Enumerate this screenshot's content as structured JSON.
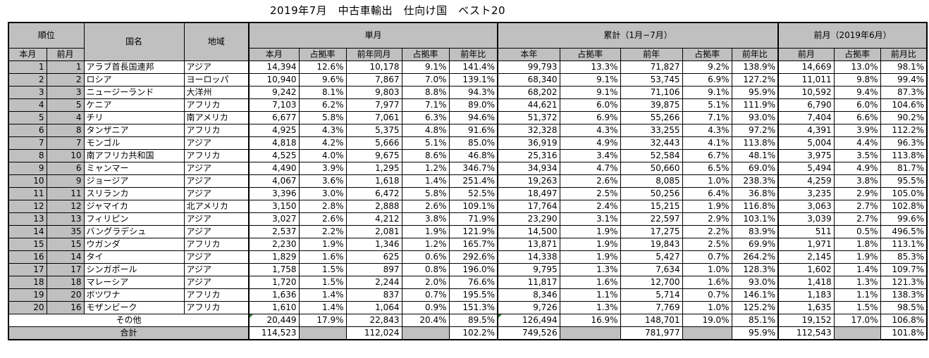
{
  "title": "2019年7月　中古車輸出　仕向け国　ベスト20",
  "headers": {
    "rank": "順位",
    "country": "国名",
    "region": "地域",
    "monthly": "単月",
    "cumulative": "累計（1月−7月）",
    "prev_month": "前月（2019年6月）",
    "this_month": "本月",
    "last_month": "前月",
    "share": "占拠率",
    "prev_year_same_month": "前年同月",
    "yoy": "前年比",
    "this_year": "本年",
    "prev_year": "前年",
    "mom": "前月比"
  },
  "rows": [
    {
      "r": "1",
      "p": "1",
      "country": "アラブ首長国連邦",
      "region": "アジア",
      "m": "14,394",
      "ms": "12.6%",
      "py": "10,178",
      "pys": "9.1%",
      "yoy": "141.4%",
      "cy": "99,793",
      "cys": "13.3%",
      "cp": "71,827",
      "cps": "9.2%",
      "cyoy": "138.9%",
      "pm": "14,669",
      "pms": "13.0%",
      "mom": "98.1%"
    },
    {
      "r": "2",
      "p": "2",
      "country": "ロシア",
      "region": "ヨーロッパ",
      "m": "10,940",
      "ms": "9.6%",
      "py": "7,867",
      "pys": "7.0%",
      "yoy": "139.1%",
      "cy": "68,340",
      "cys": "9.1%",
      "cp": "53,745",
      "cps": "6.9%",
      "cyoy": "127.2%",
      "pm": "11,011",
      "pms": "9.8%",
      "mom": "99.4%"
    },
    {
      "r": "3",
      "p": "3",
      "country": "ニュージーランド",
      "region": "大洋州",
      "m": "9,242",
      "ms": "8.1%",
      "py": "9,803",
      "pys": "8.8%",
      "yoy": "94.3%",
      "cy": "68,202",
      "cys": "9.1%",
      "cp": "71,106",
      "cps": "9.1%",
      "cyoy": "95.9%",
      "pm": "10,592",
      "pms": "9.4%",
      "mom": "87.3%"
    },
    {
      "r": "4",
      "p": "5",
      "country": "ケニア",
      "region": "アフリカ",
      "m": "7,103",
      "ms": "6.2%",
      "py": "7,977",
      "pys": "7.1%",
      "yoy": "89.0%",
      "cy": "44,621",
      "cys": "6.0%",
      "cp": "39,875",
      "cps": "5.1%",
      "cyoy": "111.9%",
      "pm": "6,790",
      "pms": "6.0%",
      "mom": "104.6%"
    },
    {
      "r": "5",
      "p": "4",
      "country": "チリ",
      "region": "南アメリカ",
      "m": "6,677",
      "ms": "5.8%",
      "py": "7,061",
      "pys": "6.3%",
      "yoy": "94.6%",
      "cy": "51,372",
      "cys": "6.9%",
      "cp": "55,266",
      "cps": "7.1%",
      "cyoy": "93.0%",
      "pm": "7,404",
      "pms": "6.6%",
      "mom": "90.2%"
    },
    {
      "r": "6",
      "p": "8",
      "country": "タンザニア",
      "region": "アフリカ",
      "m": "4,925",
      "ms": "4.3%",
      "py": "5,375",
      "pys": "4.8%",
      "yoy": "91.6%",
      "cy": "32,328",
      "cys": "4.3%",
      "cp": "33,255",
      "cps": "4.3%",
      "cyoy": "97.2%",
      "pm": "4,391",
      "pms": "3.9%",
      "mom": "112.2%"
    },
    {
      "r": "7",
      "p": "7",
      "country": "モンゴル",
      "region": "アジア",
      "m": "4,818",
      "ms": "4.2%",
      "py": "5,666",
      "pys": "5.1%",
      "yoy": "85.0%",
      "cy": "36,919",
      "cys": "4.9%",
      "cp": "32,443",
      "cps": "4.1%",
      "cyoy": "113.8%",
      "pm": "5,004",
      "pms": "4.4%",
      "mom": "96.3%"
    },
    {
      "r": "8",
      "p": "10",
      "country": "南アフリカ共和国",
      "region": "アフリカ",
      "m": "4,525",
      "ms": "4.0%",
      "py": "9,675",
      "pys": "8.6%",
      "yoy": "46.8%",
      "cy": "25,316",
      "cys": "3.4%",
      "cp": "52,584",
      "cps": "6.7%",
      "cyoy": "48.1%",
      "pm": "3,975",
      "pms": "3.5%",
      "mom": "113.8%"
    },
    {
      "r": "9",
      "p": "6",
      "country": "ミャンマー",
      "region": "アジア",
      "m": "4,490",
      "ms": "3.9%",
      "py": "1,295",
      "pys": "1.2%",
      "yoy": "346.7%",
      "cy": "34,934",
      "cys": "4.7%",
      "cp": "50,660",
      "cps": "6.5%",
      "cyoy": "69.0%",
      "pm": "5,494",
      "pms": "4.9%",
      "mom": "81.7%"
    },
    {
      "r": "10",
      "p": "9",
      "country": "ジョージア",
      "region": "アジア",
      "m": "4,067",
      "ms": "3.6%",
      "py": "1,618",
      "pys": "1.4%",
      "yoy": "251.4%",
      "cy": "19,263",
      "cys": "2.6%",
      "cp": "8,085",
      "cps": "1.0%",
      "cyoy": "238.3%",
      "pm": "4,259",
      "pms": "3.8%",
      "mom": "95.5%"
    },
    {
      "r": "11",
      "p": "11",
      "country": "スリランカ",
      "region": "アジア",
      "m": "3,396",
      "ms": "3.0%",
      "py": "6,472",
      "pys": "5.8%",
      "yoy": "52.5%",
      "cy": "18,497",
      "cys": "2.5%",
      "cp": "50,256",
      "cps": "6.4%",
      "cyoy": "36.8%",
      "pm": "3,235",
      "pms": "2.9%",
      "mom": "105.0%"
    },
    {
      "r": "12",
      "p": "12",
      "country": "ジャマイカ",
      "region": "北アメリカ",
      "m": "3,150",
      "ms": "2.8%",
      "py": "2,888",
      "pys": "2.6%",
      "yoy": "109.1%",
      "cy": "17,764",
      "cys": "2.4%",
      "cp": "15,215",
      "cps": "1.9%",
      "cyoy": "116.8%",
      "pm": "3,063",
      "pms": "2.7%",
      "mom": "102.8%"
    },
    {
      "r": "13",
      "p": "13",
      "country": "フィリピン",
      "region": "アジア",
      "m": "3,027",
      "ms": "2.6%",
      "py": "4,212",
      "pys": "3.8%",
      "yoy": "71.9%",
      "cy": "23,290",
      "cys": "3.1%",
      "cp": "22,597",
      "cps": "2.9%",
      "cyoy": "103.1%",
      "pm": "3,039",
      "pms": "2.7%",
      "mom": "99.6%"
    },
    {
      "r": "14",
      "p": "35",
      "country": "バングラデシュ",
      "region": "アジア",
      "m": "2,537",
      "ms": "2.2%",
      "py": "2,081",
      "pys": "1.9%",
      "yoy": "121.9%",
      "cy": "14,500",
      "cys": "1.9%",
      "cp": "17,275",
      "cps": "2.2%",
      "cyoy": "83.9%",
      "pm": "511",
      "pms": "0.5%",
      "mom": "496.5%"
    },
    {
      "r": "15",
      "p": "15",
      "country": "ウガンダ",
      "region": "アフリカ",
      "m": "2,230",
      "ms": "1.9%",
      "py": "1,346",
      "pys": "1.2%",
      "yoy": "165.7%",
      "cy": "13,871",
      "cys": "1.9%",
      "cp": "19,843",
      "cps": "2.5%",
      "cyoy": "69.9%",
      "pm": "1,971",
      "pms": "1.8%",
      "mom": "113.1%"
    },
    {
      "r": "16",
      "p": "14",
      "country": "タイ",
      "region": "アジア",
      "m": "1,829",
      "ms": "1.6%",
      "py": "625",
      "pys": "0.6%",
      "yoy": "292.6%",
      "cy": "14,338",
      "cys": "1.9%",
      "cp": "5,427",
      "cps": "0.7%",
      "cyoy": "264.2%",
      "pm": "2,145",
      "pms": "1.9%",
      "mom": "85.3%"
    },
    {
      "r": "17",
      "p": "17",
      "country": "シンガポール",
      "region": "アジア",
      "m": "1,758",
      "ms": "1.5%",
      "py": "897",
      "pys": "0.8%",
      "yoy": "196.0%",
      "cy": "9,795",
      "cys": "1.3%",
      "cp": "7,634",
      "cps": "1.0%",
      "cyoy": "128.3%",
      "pm": "1,602",
      "pms": "1.4%",
      "mom": "109.7%"
    },
    {
      "r": "18",
      "p": "18",
      "country": "マレーシア",
      "region": "アジア",
      "m": "1,720",
      "ms": "1.5%",
      "py": "2,244",
      "pys": "2.0%",
      "yoy": "76.6%",
      "cy": "11,817",
      "cys": "1.6%",
      "cp": "12,700",
      "cps": "1.6%",
      "cyoy": "93.0%",
      "pm": "1,418",
      "pms": "1.3%",
      "mom": "121.3%"
    },
    {
      "r": "19",
      "p": "20",
      "country": "ボツワナ",
      "region": "アフリカ",
      "m": "1,636",
      "ms": "1.4%",
      "py": "837",
      "pys": "0.7%",
      "yoy": "195.5%",
      "cy": "8,346",
      "cys": "1.1%",
      "cp": "5,714",
      "cps": "0.7%",
      "cyoy": "146.1%",
      "pm": "1,183",
      "pms": "1.1%",
      "mom": "138.3%"
    },
    {
      "r": "20",
      "p": "16",
      "country": "モザンビーク",
      "region": "アフリカ",
      "m": "1,610",
      "ms": "1.4%",
      "py": "1,064",
      "pys": "0.9%",
      "yoy": "151.3%",
      "cy": "9,726",
      "cys": "1.3%",
      "cp": "7,769",
      "cps": "1.0%",
      "cyoy": "125.2%",
      "pm": "1,635",
      "pms": "1.5%",
      "mom": "98.5%"
    }
  ],
  "other": {
    "label": "その他",
    "m": "20,449",
    "ms": "17.9%",
    "py": "22,843",
    "pys": "20.4%",
    "yoy": "89.5%",
    "cy": "126,494",
    "cys": "16.9%",
    "cp": "148,701",
    "cps": "19.0%",
    "cyoy": "85.1%",
    "pm": "19,152",
    "pms": "17.0%",
    "mom": "106.8%"
  },
  "total": {
    "label": "合計",
    "m": "114,523",
    "py": "112,024",
    "yoy": "102.2%",
    "cy": "749,526",
    "cp": "781,977",
    "cyoy": "95.9%",
    "pm": "112,543",
    "mom": "101.8%"
  }
}
